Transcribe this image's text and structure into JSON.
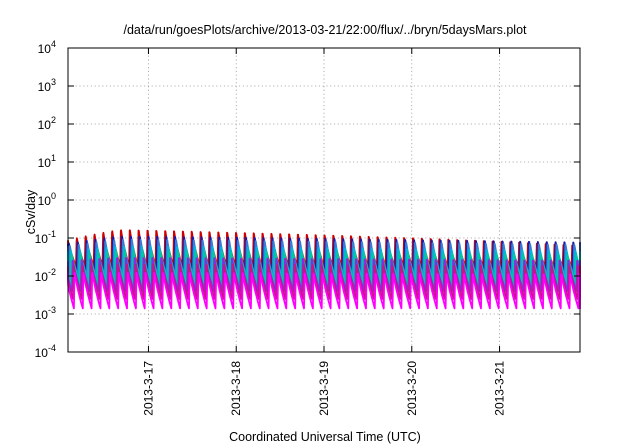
{
  "chart_data": {
    "type": "line",
    "title": "/data/run/goesPlots/archive/2013-03-21/22:00/flux/../bryn/5daysMars.plot",
    "xlabel": "Coordinated Universal Time (UTC)",
    "ylabel": "cSv/day",
    "yscale": "log",
    "ylim": [
      0.0001,
      10000
    ],
    "y_ticks": [
      {
        "base": "10",
        "exp": "-4",
        "value": 0.0001
      },
      {
        "base": "10",
        "exp": "-3",
        "value": 0.001
      },
      {
        "base": "10",
        "exp": "-2",
        "value": 0.01
      },
      {
        "base": "10",
        "exp": "-1",
        "value": 0.1
      },
      {
        "base": "10",
        "exp": "0",
        "value": 1
      },
      {
        "base": "10",
        "exp": "1",
        "value": 10
      },
      {
        "base": "10",
        "exp": "2",
        "value": 100
      },
      {
        "base": "10",
        "exp": "3",
        "value": 1000
      },
      {
        "base": "10",
        "exp": "4",
        "value": 10000
      }
    ],
    "xlim": [
      "2013-03-16 02:00",
      "2013-03-21 22:00"
    ],
    "x_ticks": [
      {
        "label": "2013-3-17",
        "value": "2013-03-17 00:00"
      },
      {
        "label": "2013-3-18",
        "value": "2013-03-18 00:00"
      },
      {
        "label": "2013-3-19",
        "value": "2013-03-19 00:00"
      },
      {
        "label": "2013-3-20",
        "value": "2013-03-20 00:00"
      },
      {
        "label": "2013-3-21",
        "value": "2013-03-21 00:00"
      }
    ],
    "grid": true,
    "oscillation_period_hours": 2.42,
    "series": [
      {
        "color": "#cc0000",
        "start_peak": 0.085,
        "max_peak": 0.16,
        "end_peak": 0.06,
        "trough": 0.018
      },
      {
        "color": "#1a1aa6",
        "start_peak": 0.07,
        "max_peak": 0.11,
        "end_peak": 0.075,
        "trough": 0.012
      },
      {
        "color": "#3a7bd5",
        "start_peak": 0.06,
        "max_peak": 0.09,
        "end_peak": 0.065,
        "trough": 0.01
      },
      {
        "color": "#00b5d8",
        "start_peak": 0.045,
        "max_peak": 0.06,
        "end_peak": 0.045,
        "trough": 0.008
      },
      {
        "color": "#00c8a0",
        "start_peak": 0.035,
        "max_peak": 0.045,
        "end_peak": 0.035,
        "trough": 0.006
      },
      {
        "color": "#8a2be2",
        "start_peak": 0.025,
        "max_peak": 0.03,
        "end_peak": 0.025,
        "trough": 0.004
      },
      {
        "color": "#c71585",
        "start_peak": 0.018,
        "max_peak": 0.02,
        "end_peak": 0.018,
        "trough": 0.0025
      },
      {
        "color": "#ff00ff",
        "start_peak": 0.012,
        "max_peak": 0.012,
        "end_peak": 0.011,
        "trough": 0.0014
      }
    ]
  }
}
